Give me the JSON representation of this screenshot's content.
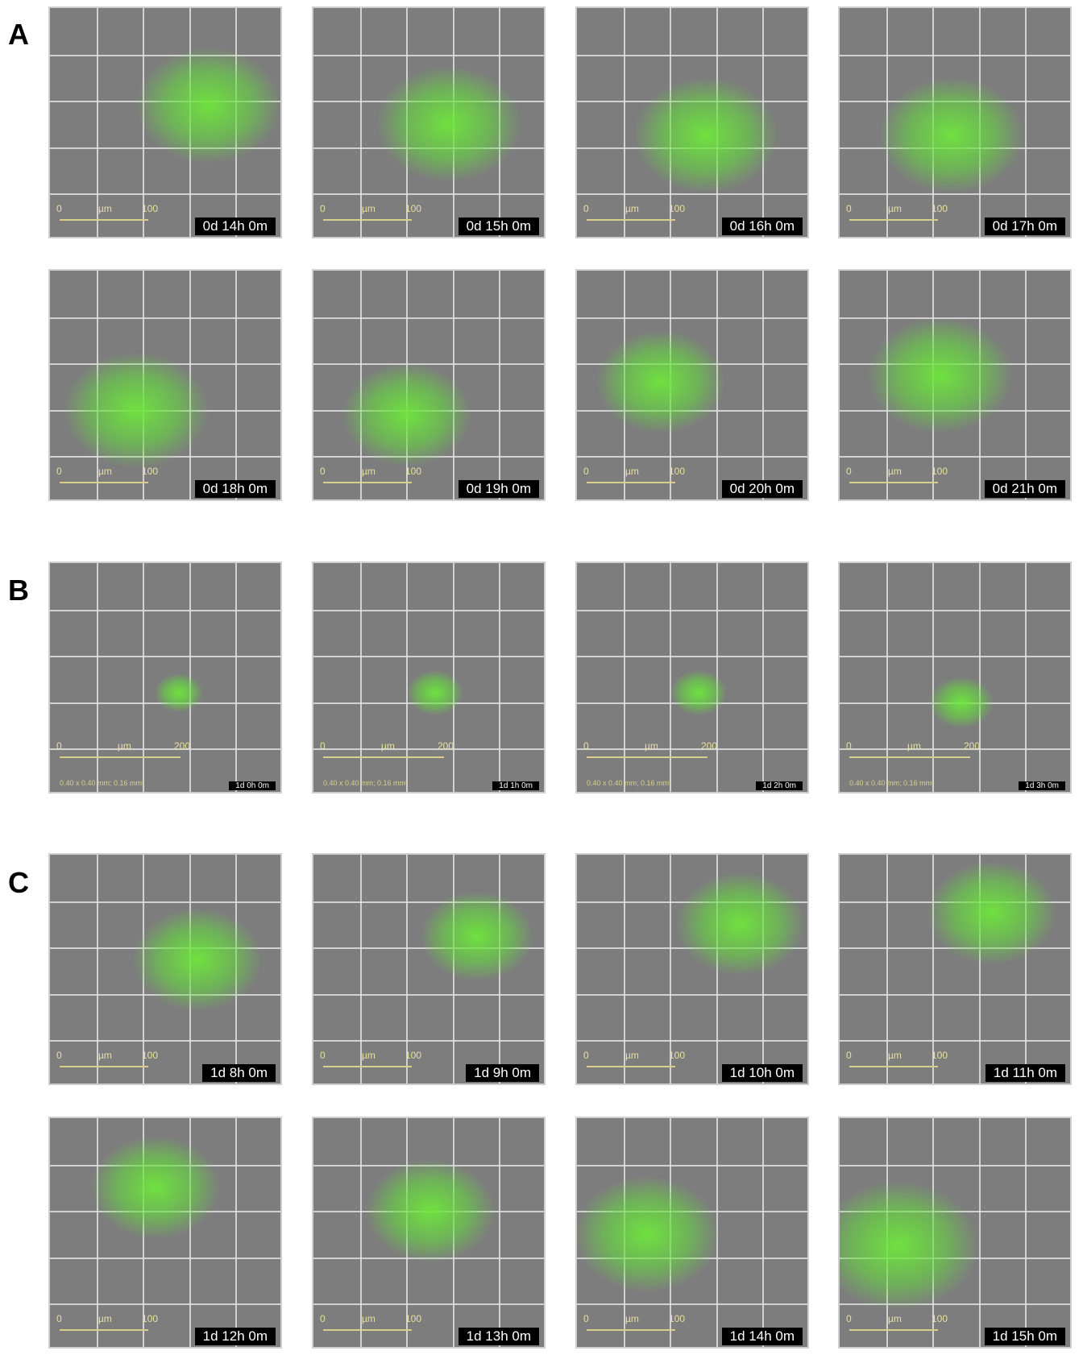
{
  "panels": [
    {
      "label": "A",
      "frames": [
        {
          "time": "0d 14h 0m",
          "scale": [
            "0",
            "µm",
            "100"
          ]
        },
        {
          "time": "0d 15h 0m",
          "scale": [
            "0",
            "µm",
            "100"
          ]
        },
        {
          "time": "0d 16h 0m",
          "scale": [
            "0",
            "µm",
            "100"
          ]
        },
        {
          "time": "0d 17h 0m",
          "scale": [
            "0",
            "µm",
            "100"
          ]
        },
        {
          "time": "0d 18h 0m",
          "scale": [
            "0",
            "µm",
            "100"
          ]
        },
        {
          "time": "0d 19h 0m",
          "scale": [
            "0",
            "µm",
            "100"
          ]
        },
        {
          "time": "0d 20h 0m",
          "scale": [
            "0",
            "µm",
            "100"
          ]
        },
        {
          "time": "0d 21h 0m",
          "scale": [
            "0",
            "µm",
            "100"
          ]
        }
      ]
    },
    {
      "label": "B",
      "frames": [
        {
          "time": "1d 0h 0m",
          "scale": [
            "0",
            "µm",
            "200"
          ],
          "area": "0.40 x 0.40 mm; 0.16 mm²"
        },
        {
          "time": "1d 1h 0m",
          "scale": [
            "0",
            "µm",
            "200"
          ],
          "area": "0.40 x 0.40 mm; 0.16 mm²"
        },
        {
          "time": "1d 2h 0m",
          "scale": [
            "0",
            "µm",
            "200"
          ],
          "area": "0.40 x 0.40 mm; 0.16 mm²"
        },
        {
          "time": "1d 3h 0m",
          "scale": [
            "0",
            "µm",
            "200"
          ],
          "area": "0.40 x 0.40 mm; 0.16 mm²"
        }
      ]
    },
    {
      "label": "C",
      "frames": [
        {
          "time": "1d 8h 0m",
          "scale": [
            "0",
            "µm",
            "100"
          ]
        },
        {
          "time": "1d 9h 0m",
          "scale": [
            "0",
            "µm",
            "100"
          ]
        },
        {
          "time": "1d 10h 0m",
          "scale": [
            "0",
            "µm",
            "100"
          ]
        },
        {
          "time": "1d 11h 0m",
          "scale": [
            "0",
            "µm",
            "100"
          ]
        },
        {
          "time": "1d 12h 0m",
          "scale": [
            "0",
            "µm",
            "100"
          ]
        },
        {
          "time": "1d 13h 0m",
          "scale": [
            "0",
            "µm",
            "100"
          ]
        },
        {
          "time": "1d 14h 0m",
          "scale": [
            "0",
            "µm",
            "100"
          ]
        },
        {
          "time": "1d 15h 0m",
          "scale": [
            "0",
            "µm",
            "100"
          ]
        }
      ]
    }
  ]
}
